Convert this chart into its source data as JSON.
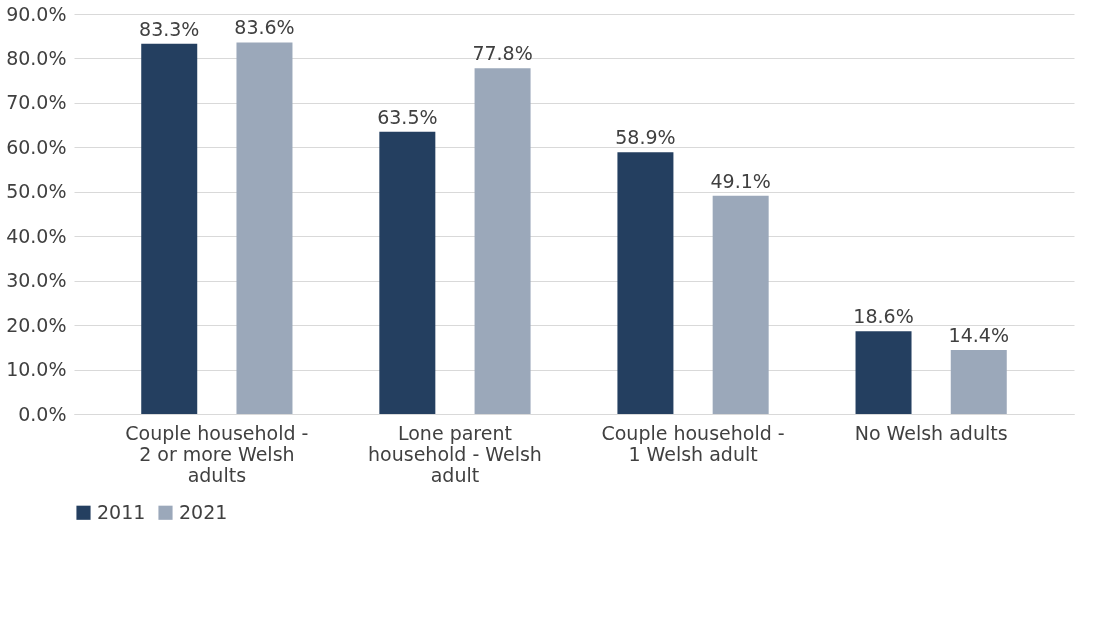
{
  "chart_data": {
    "type": "bar",
    "categories": [
      "Couple household - 2 or more Welsh adults",
      "Lone parent household - Welsh adult",
      "Couple household - 1 Welsh adult",
      "No Welsh adults"
    ],
    "series": [
      {
        "name": "2011",
        "color": "#243f60",
        "values": [
          83.3,
          63.5,
          58.9,
          18.6
        ],
        "value_labels": [
          "83.3%",
          "63.5%",
          "58.9%",
          "18.6%"
        ]
      },
      {
        "name": "2021",
        "color": "#9ba8ba",
        "values": [
          83.6,
          77.8,
          49.1,
          14.4
        ],
        "value_labels": [
          "83.6%",
          "77.8%",
          "49.1%",
          "14.4%"
        ]
      }
    ],
    "ylim": [
      0,
      90
    ],
    "yticks": [
      {
        "value": 0,
        "label": "0.0%"
      },
      {
        "value": 10,
        "label": "10.0%"
      },
      {
        "value": 20,
        "label": "20.0%"
      },
      {
        "value": 30,
        "label": "30.0%"
      },
      {
        "value": 40,
        "label": "40.0%"
      },
      {
        "value": 50,
        "label": "50.0%"
      },
      {
        "value": 60,
        "label": "60.0%"
      },
      {
        "value": 70,
        "label": "70.0%"
      },
      {
        "value": 80,
        "label": "80.0%"
      },
      {
        "value": 90,
        "label": "90.0%"
      }
    ],
    "grid": "y",
    "legend": "bottom"
  }
}
